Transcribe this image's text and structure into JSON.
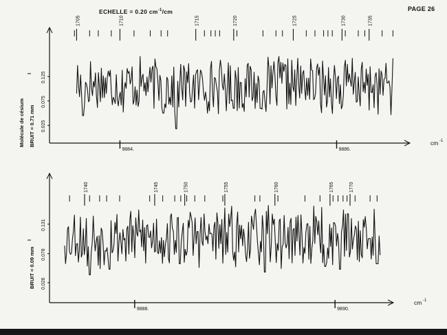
{
  "page": {
    "label": "PAGE 26"
  },
  "scale": {
    "prefix": "ECHELLE = 0.20 cm",
    "exp": "-1",
    "suffix": "/cm"
  },
  "side_labels": {
    "molecule": "Molécule de césium",
    "bruit_top": "BRUIT = 0.71 mm",
    "bruit_bottom": "BRUIT = 0.09 mm",
    "intensity_top": "I",
    "intensity_bottom": "I"
  },
  "colors": {
    "ink": "#111111",
    "paper": "#f4f4f1"
  },
  "chart_data": [
    {
      "type": "line",
      "x_unit": "cm-1",
      "xlim": [
        9883.35,
        9886.6
      ],
      "x_ticks": [
        9884,
        9886
      ],
      "x_tick_labels": [
        "9884.",
        "9886."
      ],
      "y_ticks": [
        0.025,
        0.075,
        0.125
      ],
      "y_tick_labels": [
        "0.025",
        "0.075",
        "0.125"
      ],
      "ylim": [
        0,
        0.2
      ],
      "line_markers": [
        {
          "label": "1705",
          "x": 9883.6
        },
        {
          "label": "1710",
          "x": 9884.0
        },
        {
          "label": "1715",
          "x": 9884.7
        },
        {
          "label": "1720",
          "x": 9885.05
        },
        {
          "label": "1725",
          "x": 9885.6
        },
        {
          "label": "1730",
          "x": 9886.05
        },
        {
          "label": "1735",
          "x": 9886.3
        }
      ],
      "tick_marks_x": [
        9883.58,
        9883.72,
        9883.8,
        9883.92,
        9884.13,
        9884.28,
        9884.38,
        9884.44,
        9884.78,
        9884.84,
        9884.88,
        9884.92,
        9885.08,
        9885.32,
        9885.44,
        9885.5,
        9885.72,
        9885.8,
        9885.88,
        9885.92,
        9885.96,
        9886.08,
        9886.2,
        9886.26,
        9886.42,
        9886.52
      ],
      "signal": {
        "mean": 0.108,
        "amplitude": 0.062,
        "points": 320,
        "seed": 17,
        "x_start": 9883.6,
        "x_end": 9886.52,
        "deep_dips": [
          {
            "x": 9883.66,
            "y": 0.045
          },
          {
            "x": 9884.4,
            "y": 0.05
          },
          {
            "x": 9884.52,
            "y": 0.018
          },
          {
            "x": 9885.05,
            "y": 0.06
          },
          {
            "x": 9885.3,
            "y": 0.06
          },
          {
            "x": 9886.05,
            "y": 0.065
          }
        ]
      },
      "x_axis_label": "cm",
      "x_axis_label_exp": "-1"
    },
    {
      "type": "line",
      "x_unit": "cm-1",
      "xlim": [
        9887.15,
        9890.5
      ],
      "x_ticks": [
        9888,
        9890
      ],
      "x_tick_labels": [
        "9888.",
        "9890."
      ],
      "y_ticks": [
        0.026,
        0.078,
        0.131
      ],
      "y_tick_labels": [
        "0.026",
        "0.078",
        "0.131"
      ],
      "ylim": [
        0,
        0.2
      ],
      "line_markers": [
        {
          "label": "1740",
          "x": 9887.5
        },
        {
          "label": "1745",
          "x": 9888.2
        },
        {
          "label": "1750",
          "x": 9888.5
        },
        {
          "label": "1755",
          "x": 9888.9
        },
        {
          "label": "1760",
          "x": 9889.4
        },
        {
          "label": "1765",
          "x": 9889.95
        },
        {
          "label": "1770",
          "x": 9890.15
        }
      ],
      "tick_marks_x": [
        9887.35,
        9887.55,
        9887.65,
        9887.72,
        9887.85,
        9888.15,
        9888.28,
        9888.4,
        9888.46,
        9888.52,
        9888.6,
        9888.7,
        9888.88,
        9889.2,
        9889.25,
        9889.43,
        9889.7,
        9889.85,
        9889.98,
        9890.03,
        9890.08,
        9890.12,
        9890.2,
        9890.35,
        9890.42
      ],
      "signal": {
        "mean": 0.108,
        "amplitude": 0.058,
        "points": 320,
        "seed": 53,
        "x_start": 9887.3,
        "x_end": 9890.45,
        "deep_dips": [
          {
            "x": 9887.55,
            "y": 0.04
          },
          {
            "x": 9887.75,
            "y": 0.05
          },
          {
            "x": 9888.45,
            "y": 0.06
          },
          {
            "x": 9889.3,
            "y": 0.045
          },
          {
            "x": 9889.9,
            "y": 0.055
          },
          {
            "x": 9890.05,
            "y": 0.05
          },
          {
            "x": 9890.42,
            "y": 0.06
          }
        ]
      },
      "x_axis_label": "cm",
      "x_axis_label_exp": "-1"
    }
  ]
}
